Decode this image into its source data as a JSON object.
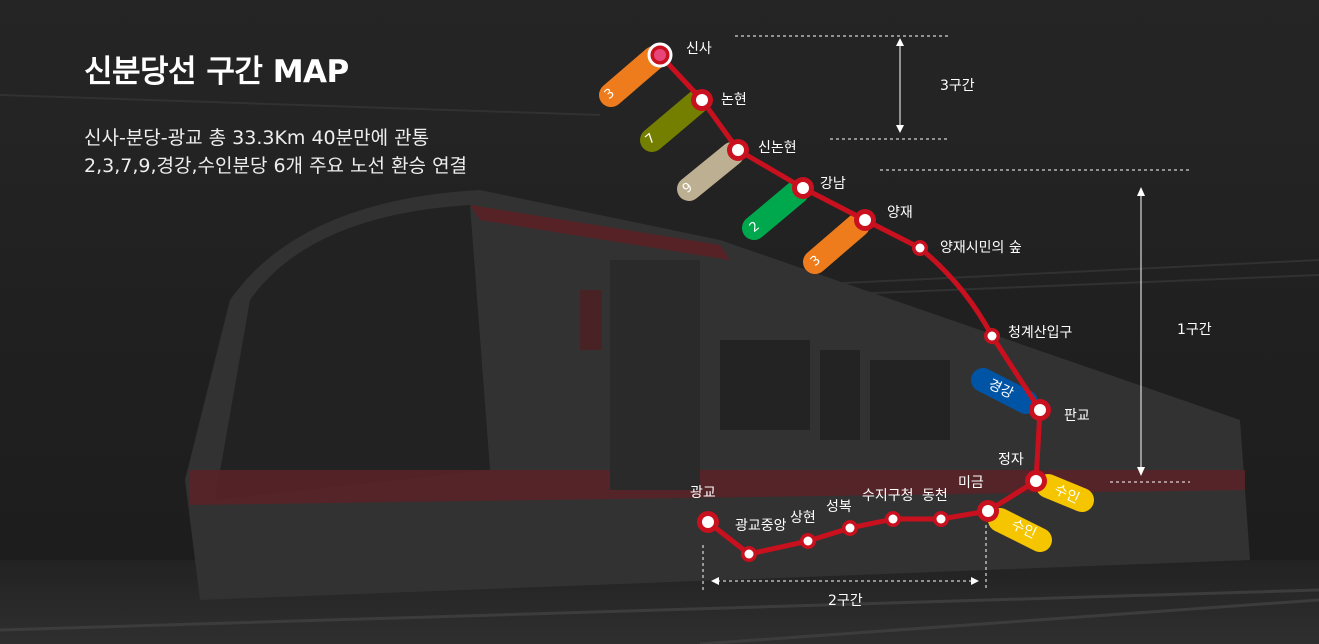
{
  "header": {
    "title": "신분당선 구간 MAP",
    "desc_line1": "신사-분당-광교 총 33.3Km 40분만에 관통",
    "desc_line2": "2,3,7,9,경강,수인분당 6개 주요 노선 환승 연결"
  },
  "stations": {
    "sinsa": "신사",
    "nonhyeon": "논현",
    "sinnonhyeon": "신논현",
    "gangnam": "강남",
    "yangjae": "양재",
    "yangjae_forest": "양재시민의 숲",
    "cheonggyesan": "청계산입구",
    "pangyo": "판교",
    "jeongja": "정자",
    "migeum": "미금",
    "dongcheon": "동천",
    "suji": "수지구청",
    "seongbok": "성복",
    "sanghyeon": "상현",
    "gwanggyo_jungang": "광교중앙",
    "gwanggyo": "광교"
  },
  "transfers": {
    "line3_sinsa": "3",
    "line7": "7",
    "line9": "9",
    "line2": "2",
    "line3_yangjae": "3",
    "gyeonggang": "경강",
    "suin_jeongja": "수인",
    "suin_migeum": "수인"
  },
  "sections": {
    "section3": "3구간",
    "section1": "1구간",
    "section2": "2구간"
  },
  "colors": {
    "line": "#c8101e",
    "line3": "#ef7c1c",
    "line7": "#747f00",
    "line9": "#bdb092",
    "line2": "#00a84d",
    "gyeonggang": "#0054a6",
    "suin": "#f5c500"
  }
}
